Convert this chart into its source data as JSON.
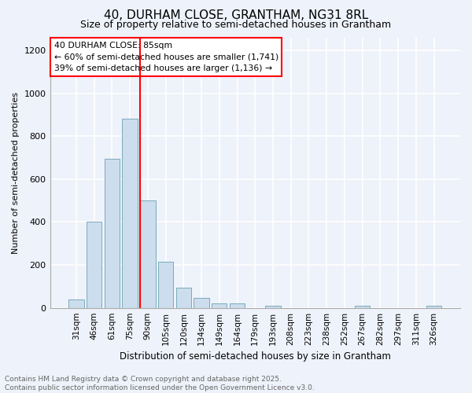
{
  "title1": "40, DURHAM CLOSE, GRANTHAM, NG31 8RL",
  "title2": "Size of property relative to semi-detached houses in Grantham",
  "xlabel": "Distribution of semi-detached houses by size in Grantham",
  "ylabel": "Number of semi-detached properties",
  "categories": [
    "31sqm",
    "46sqm",
    "61sqm",
    "75sqm",
    "90sqm",
    "105sqm",
    "120sqm",
    "134sqm",
    "149sqm",
    "164sqm",
    "179sqm",
    "193sqm",
    "208sqm",
    "223sqm",
    "238sqm",
    "252sqm",
    "267sqm",
    "282sqm",
    "297sqm",
    "311sqm",
    "326sqm"
  ],
  "values": [
    40,
    400,
    695,
    880,
    500,
    215,
    95,
    45,
    20,
    20,
    0,
    10,
    0,
    0,
    0,
    0,
    10,
    0,
    0,
    0,
    10
  ],
  "bar_color": "#ccdded",
  "bar_edge_color": "#7aaabb",
  "vline_x_index": 4,
  "vline_color": "red",
  "annotation_title": "40 DURHAM CLOSE: 85sqm",
  "annotation_line2": "← 60% of semi-detached houses are smaller (1,741)",
  "annotation_line3": "39% of semi-detached houses are larger (1,136) →",
  "annotation_box_color": "white",
  "annotation_box_edge": "red",
  "ylim": [
    0,
    1260
  ],
  "yticks": [
    0,
    200,
    400,
    600,
    800,
    1000,
    1200
  ],
  "footer1": "Contains HM Land Registry data © Crown copyright and database right 2025.",
  "footer2": "Contains public sector information licensed under the Open Government Licence v3.0.",
  "bg_color": "#eef2fa",
  "grid_color": "white",
  "title1_fontsize": 11,
  "title2_fontsize": 9,
  "ylabel_fontsize": 8,
  "xlabel_fontsize": 8.5,
  "tick_fontsize": 7.5,
  "footer_fontsize": 6.5
}
